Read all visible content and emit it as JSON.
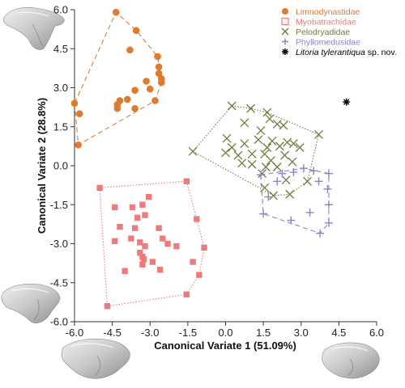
{
  "chart_data": {
    "type": "scatter",
    "xlabel": "Canonical Variate 1 (51.09%)",
    "ylabel": "Canonical Variate 2 (28.8%)",
    "xlim": [
      -6.0,
      6.0
    ],
    "ylim": [
      -6.0,
      6.0
    ],
    "xticks": [
      "-6.0",
      "-4.5",
      "-3.0",
      "-1.5",
      "0.0",
      "1.5",
      "3.0",
      "4.5",
      "6.0"
    ],
    "yticks": [
      "6.0",
      "4.5",
      "3.0",
      "1.5",
      "0.0",
      "-1.5",
      "-3.0",
      "-4.5",
      "-6.0"
    ],
    "grid": false,
    "legend_position": "top-right",
    "series": [
      {
        "name": "Limnodynastidae",
        "marker": "circle",
        "color": "#e07a2e",
        "hull": "dashed",
        "points": [
          [
            -4.35,
            5.9
          ],
          [
            -3.55,
            5.2
          ],
          [
            -3.8,
            4.45
          ],
          [
            -2.7,
            4.2
          ],
          [
            -2.65,
            3.8
          ],
          [
            -2.65,
            3.55
          ],
          [
            -2.55,
            3.35
          ],
          [
            -2.55,
            3.2
          ],
          [
            -3.15,
            3.25
          ],
          [
            -3.6,
            2.9
          ],
          [
            -3.0,
            2.95
          ],
          [
            -3.9,
            2.55
          ],
          [
            -4.2,
            2.5
          ],
          [
            -4.3,
            2.35
          ],
          [
            -4.3,
            2.2
          ],
          [
            -3.6,
            2.2
          ],
          [
            -2.8,
            2.5
          ],
          [
            -6.0,
            2.4
          ],
          [
            -5.8,
            2.0
          ],
          [
            -5.85,
            0.8
          ]
        ]
      },
      {
        "name": "Myobatrachidae",
        "marker": "square",
        "color": "#ee7b7b",
        "hull": "dotted",
        "points": [
          [
            -5.0,
            -0.85
          ],
          [
            -1.55,
            -0.6
          ],
          [
            -3.05,
            -1.2
          ],
          [
            -3.3,
            -1.5
          ],
          [
            -3.7,
            -1.6
          ],
          [
            -4.4,
            -1.6
          ],
          [
            -3.2,
            -1.9
          ],
          [
            -3.5,
            -2.0
          ],
          [
            -3.6,
            -2.4
          ],
          [
            -1.15,
            -2.05
          ],
          [
            -4.2,
            -2.35
          ],
          [
            -2.65,
            -2.4
          ],
          [
            -3.75,
            -2.8
          ],
          [
            -2.5,
            -2.8
          ],
          [
            -4.4,
            -2.9
          ],
          [
            -3.4,
            -2.95
          ],
          [
            -2.3,
            -3.0
          ],
          [
            -1.95,
            -3.1
          ],
          [
            -3.2,
            -3.1
          ],
          [
            -0.85,
            -3.15
          ],
          [
            -3.4,
            -3.35
          ],
          [
            -3.3,
            -3.5
          ],
          [
            -2.9,
            -3.7
          ],
          [
            -3.25,
            -3.6
          ],
          [
            -3.3,
            -3.8
          ],
          [
            -1.3,
            -3.7
          ],
          [
            -4.0,
            -4.05
          ],
          [
            -2.6,
            -4.0
          ],
          [
            -1.05,
            -4.2
          ],
          [
            -1.55,
            -4.95
          ],
          [
            -4.7,
            -5.4
          ]
        ]
      },
      {
        "name": "Pelodryadidae",
        "marker": "x",
        "color": "#6a7f3e",
        "hull": "dotted",
        "points": [
          [
            0.25,
            2.3
          ],
          [
            1.0,
            2.2
          ],
          [
            1.65,
            2.05
          ],
          [
            0.75,
            1.65
          ],
          [
            1.75,
            1.8
          ],
          [
            2.3,
            1.55
          ],
          [
            2.05,
            1.6
          ],
          [
            1.4,
            1.35
          ],
          [
            3.7,
            1.2
          ],
          [
            0.05,
            1.05
          ],
          [
            1.3,
            1.0
          ],
          [
            1.85,
            0.95
          ],
          [
            2.45,
            0.9
          ],
          [
            2.7,
            0.85
          ],
          [
            0.75,
            0.85
          ],
          [
            0.25,
            0.7
          ],
          [
            1.65,
            0.7
          ],
          [
            2.15,
            0.75
          ],
          [
            2.95,
            0.7
          ],
          [
            -1.3,
            0.55
          ],
          [
            0.0,
            0.5
          ],
          [
            0.5,
            0.4
          ],
          [
            1.05,
            0.45
          ],
          [
            1.55,
            0.45
          ],
          [
            2.35,
            0.4
          ],
          [
            1.8,
            0.2
          ],
          [
            2.65,
            0.15
          ],
          [
            0.65,
            0.1
          ],
          [
            1.05,
            0.05
          ],
          [
            1.6,
            -0.05
          ],
          [
            2.05,
            -0.05
          ],
          [
            1.45,
            -0.3
          ],
          [
            2.4,
            -0.55
          ],
          [
            3.25,
            -0.6
          ],
          [
            1.55,
            -0.85
          ],
          [
            1.9,
            -1.15
          ],
          [
            2.55,
            -1.1
          ]
        ]
      },
      {
        "name": "Phyllomedusidae",
        "marker": "plus",
        "color": "#8a86c2",
        "hull": "dashed",
        "points": [
          [
            3.1,
            -0.1
          ],
          [
            3.5,
            -0.2
          ],
          [
            4.1,
            -0.3
          ],
          [
            1.4,
            -0.35
          ],
          [
            2.25,
            -0.3
          ],
          [
            2.7,
            -0.25
          ],
          [
            2.05,
            -0.6
          ],
          [
            3.7,
            -0.6
          ],
          [
            4.05,
            -0.9
          ],
          [
            1.7,
            -1.2
          ],
          [
            4.1,
            -1.5
          ],
          [
            3.35,
            -1.8
          ],
          [
            1.5,
            -1.85
          ],
          [
            2.6,
            -2.1
          ],
          [
            4.1,
            -2.2
          ],
          [
            3.75,
            -2.6
          ]
        ]
      },
      {
        "name": "Litoria tylerantiqua",
        "name_suffix": " sp. nov.",
        "marker": "star",
        "color": "#000000",
        "points": [
          [
            4.8,
            2.45
          ]
        ]
      }
    ]
  }
}
